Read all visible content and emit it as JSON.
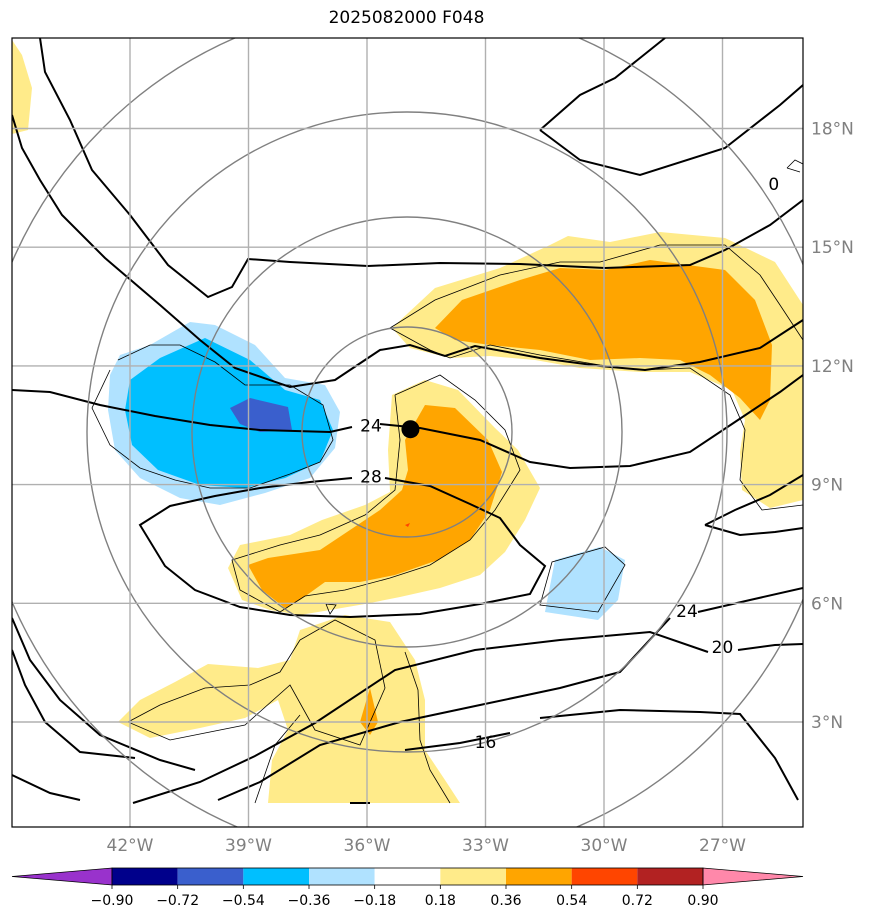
{
  "title": "2025082000 F048",
  "lon_ticks": [
    {
      "lon": -42,
      "label": "42°W"
    },
    {
      "lon": -39,
      "label": "39°W"
    },
    {
      "lon": -36,
      "label": "36°W"
    },
    {
      "lon": -33,
      "label": "33°W"
    },
    {
      "lon": -30,
      "label": "30°W"
    },
    {
      "lon": -27,
      "label": "27°W"
    }
  ],
  "lat_ticks": [
    {
      "lat": 3,
      "label": "3°N"
    },
    {
      "lat": 6,
      "label": "6°N"
    },
    {
      "lat": 9,
      "label": "9°N"
    },
    {
      "lat": 12,
      "label": "12°N"
    },
    {
      "lat": 15,
      "label": "15°N"
    },
    {
      "lat": 18,
      "label": "18°N"
    }
  ],
  "contour_labels": [
    {
      "text": "24",
      "lon": -35.9,
      "lat": 10.5
    },
    {
      "text": "28",
      "lon": -35.9,
      "lat": 9.2
    },
    {
      "text": "24",
      "lon": -27.9,
      "lat": 5.8
    },
    {
      "text": "20",
      "lon": -27.0,
      "lat": 4.9
    },
    {
      "text": "16",
      "lon": -33.0,
      "lat": 2.5
    },
    {
      "text": "0",
      "lon": -25.7,
      "lat": 16.6
    }
  ],
  "storm_center": {
    "lon": -34.9,
    "lat": 10.4
  },
  "colorbar": {
    "colors": [
      "#9932cc",
      "#00008b",
      "#3a5fcd",
      "#00bfff",
      "#b0e2ff",
      "#ffffff",
      "#ffeb8a",
      "#ffa500",
      "#ff4500",
      "#b22222",
      "#ff88aa"
    ],
    "tick_labels": [
      "−0.90",
      "−0.72",
      "−0.54",
      "−0.36",
      "−0.18",
      "0.18",
      "0.36",
      "0.54",
      "0.72",
      "0.90"
    ]
  }
}
